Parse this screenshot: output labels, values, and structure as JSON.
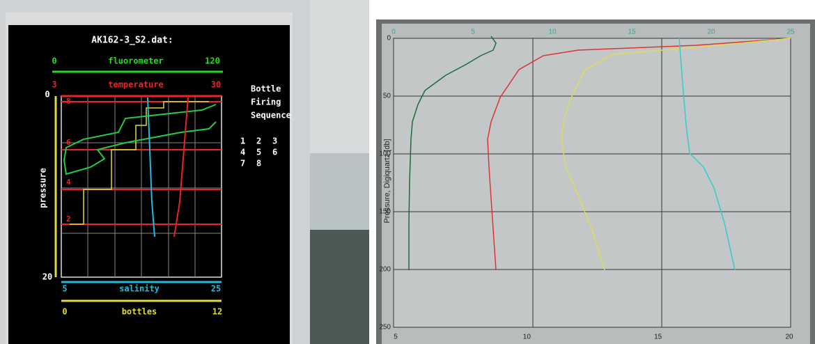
{
  "left_screen": {
    "title": "AK162-3_S2.dat:",
    "fluorometer_axis": {
      "label": "fluorometer",
      "min": "0",
      "max": "120"
    },
    "temperature_axis": {
      "label": "temperature",
      "min": "3",
      "max": "30"
    },
    "pressure_axis": {
      "label": "pressure",
      "min": "0",
      "max": "20"
    },
    "salinity_axis": {
      "label": "salinity",
      "min": "5",
      "max": "25"
    },
    "bottles_axis": {
      "label": "bottles",
      "min": "0",
      "max": "12"
    },
    "bottle_markers": [
      "8",
      "6",
      "4",
      "2"
    ],
    "legend": {
      "title": [
        "Bottle",
        "Firing",
        "Sequence"
      ],
      "numbers": [
        "1",
        "2",
        "3",
        "4",
        "5",
        "6",
        "7",
        "8"
      ]
    }
  },
  "right_screen": {
    "top_ticks": [
      "0",
      "5",
      "10",
      "15",
      "20",
      "25"
    ],
    "y_ticks": [
      "0",
      "50",
      "100",
      "150",
      "200",
      "250"
    ],
    "y_label": "Pressure, Digiquartz [db]",
    "bottom_ticks": [
      "5",
      "10",
      "15",
      "20"
    ]
  }
}
